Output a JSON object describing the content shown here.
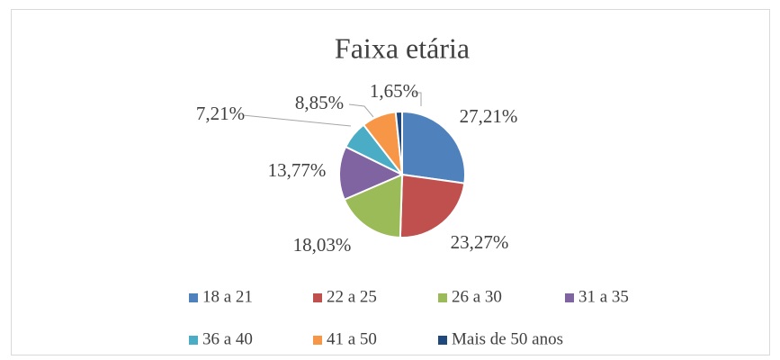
{
  "chart_data": {
    "type": "pie",
    "title": "Faixa etária",
    "categories": [
      "18 a 21",
      "22 a 25",
      "26 a 30",
      "31 a 35",
      "36 a 40",
      "41 a 50",
      "Mais de 50 anos"
    ],
    "values": [
      27.21,
      23.27,
      18.03,
      13.77,
      7.21,
      8.85,
      1.65
    ],
    "value_labels": [
      "27,21%",
      "23,27%",
      "18,03%",
      "13,77%",
      "7,21%",
      "8,85%",
      "1,65%"
    ],
    "colors": [
      "#4f81bd",
      "#c0504d",
      "#9bbb59",
      "#8064a2",
      "#4bacc6",
      "#f79646",
      "#1f497d"
    ],
    "legend": "bottom"
  }
}
